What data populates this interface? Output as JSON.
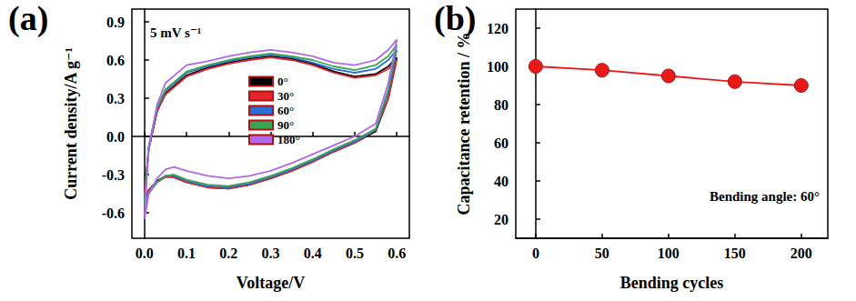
{
  "chart_data": [
    {
      "type": "line",
      "title": "(a)",
      "x_label": "Voltage/V",
      "y_label": "Current density/A g⁻¹",
      "annotations": [
        "5 mV s⁻¹"
      ],
      "x": [
        0,
        0.01,
        0.03,
        0.05,
        0.1,
        0.15,
        0.2,
        0.25,
        0.3,
        0.35,
        0.4,
        0.45,
        0.5,
        0.55,
        0.58,
        0.6,
        0.6,
        0.58,
        0.55,
        0.5,
        0.45,
        0.4,
        0.35,
        0.3,
        0.25,
        0.2,
        0.15,
        0.1,
        0.07,
        0.05,
        0.03,
        0.01,
        0
      ],
      "series": [
        {
          "name": "0°",
          "color": "#000000",
          "values": [
            -0.47,
            -0.1,
            0.2,
            0.34,
            0.48,
            0.54,
            0.58,
            0.61,
            0.63,
            0.61,
            0.57,
            0.51,
            0.47,
            0.49,
            0.55,
            0.62,
            0.62,
            0.3,
            0.04,
            -0.05,
            -0.12,
            -0.2,
            -0.27,
            -0.33,
            -0.38,
            -0.41,
            -0.4,
            -0.36,
            -0.32,
            -0.31,
            -0.35,
            -0.42,
            -0.5
          ]
        },
        {
          "name": "30°",
          "color": "#e0262b",
          "values": [
            -0.45,
            -0.1,
            0.2,
            0.33,
            0.47,
            0.53,
            0.57,
            0.6,
            0.62,
            0.6,
            0.56,
            0.5,
            0.46,
            0.48,
            0.53,
            0.6,
            0.6,
            0.3,
            0.05,
            -0.05,
            -0.12,
            -0.2,
            -0.27,
            -0.33,
            -0.38,
            -0.41,
            -0.4,
            -0.36,
            -0.32,
            -0.32,
            -0.36,
            -0.42,
            -0.48
          ]
        },
        {
          "name": "60°",
          "color": "#2a6ed8",
          "values": [
            -0.5,
            -0.08,
            0.22,
            0.36,
            0.5,
            0.55,
            0.59,
            0.62,
            0.64,
            0.62,
            0.58,
            0.53,
            0.5,
            0.53,
            0.6,
            0.68,
            0.68,
            0.35,
            0.05,
            -0.04,
            -0.11,
            -0.19,
            -0.26,
            -0.32,
            -0.37,
            -0.4,
            -0.39,
            -0.35,
            -0.31,
            -0.31,
            -0.36,
            -0.44,
            -0.52
          ]
        },
        {
          "name": "90°",
          "color": "#3aa655",
          "values": [
            -0.52,
            -0.08,
            0.23,
            0.37,
            0.51,
            0.56,
            0.6,
            0.63,
            0.65,
            0.63,
            0.6,
            0.55,
            0.52,
            0.56,
            0.63,
            0.72,
            0.72,
            0.37,
            0.06,
            -0.03,
            -0.1,
            -0.18,
            -0.25,
            -0.31,
            -0.36,
            -0.39,
            -0.38,
            -0.34,
            -0.3,
            -0.31,
            -0.36,
            -0.45,
            -0.55
          ]
        },
        {
          "name": "180°",
          "color": "#b069e8",
          "values": [
            -0.62,
            -0.1,
            0.25,
            0.42,
            0.56,
            0.59,
            0.63,
            0.66,
            0.68,
            0.66,
            0.63,
            0.58,
            0.56,
            0.6,
            0.68,
            0.76,
            0.76,
            0.42,
            0.1,
            0.0,
            -0.07,
            -0.14,
            -0.21,
            -0.27,
            -0.31,
            -0.33,
            -0.31,
            -0.27,
            -0.24,
            -0.26,
            -0.33,
            -0.45,
            -0.65
          ]
        }
      ],
      "xlim": [
        -0.03,
        0.63
      ],
      "xticks": [
        {
          "value": 0,
          "label": "0.0"
        },
        0.1,
        0.2,
        0.3,
        0.4,
        0.5,
        0.6
      ],
      "ylim": [
        -0.8,
        1.0
      ],
      "yticks": [
        -0.6,
        -0.3,
        {
          "value": 0,
          "label": "0.0"
        },
        0.3,
        0.6,
        0.9
      ],
      "grid": false,
      "legend": "center",
      "line_style": "solid",
      "marker": "none"
    },
    {
      "type": "line",
      "title": "(b)",
      "x_label": "Bending cycles",
      "y_label": "Capacitance retention / %",
      "annotations": [
        "Bending angle: 60°"
      ],
      "x": [
        0,
        50,
        100,
        150,
        200
      ],
      "series": [
        {
          "color": "#e8191a",
          "values": [
            100,
            98,
            95,
            92,
            90
          ]
        }
      ],
      "xlim": [
        -15,
        220
      ],
      "xticks": [
        0,
        50,
        100,
        150,
        200
      ],
      "ylim": [
        10,
        130
      ],
      "yticks": [
        20,
        40,
        60,
        80,
        100,
        120
      ],
      "grid": false,
      "line_style": "solid",
      "marker": "circle"
    }
  ]
}
